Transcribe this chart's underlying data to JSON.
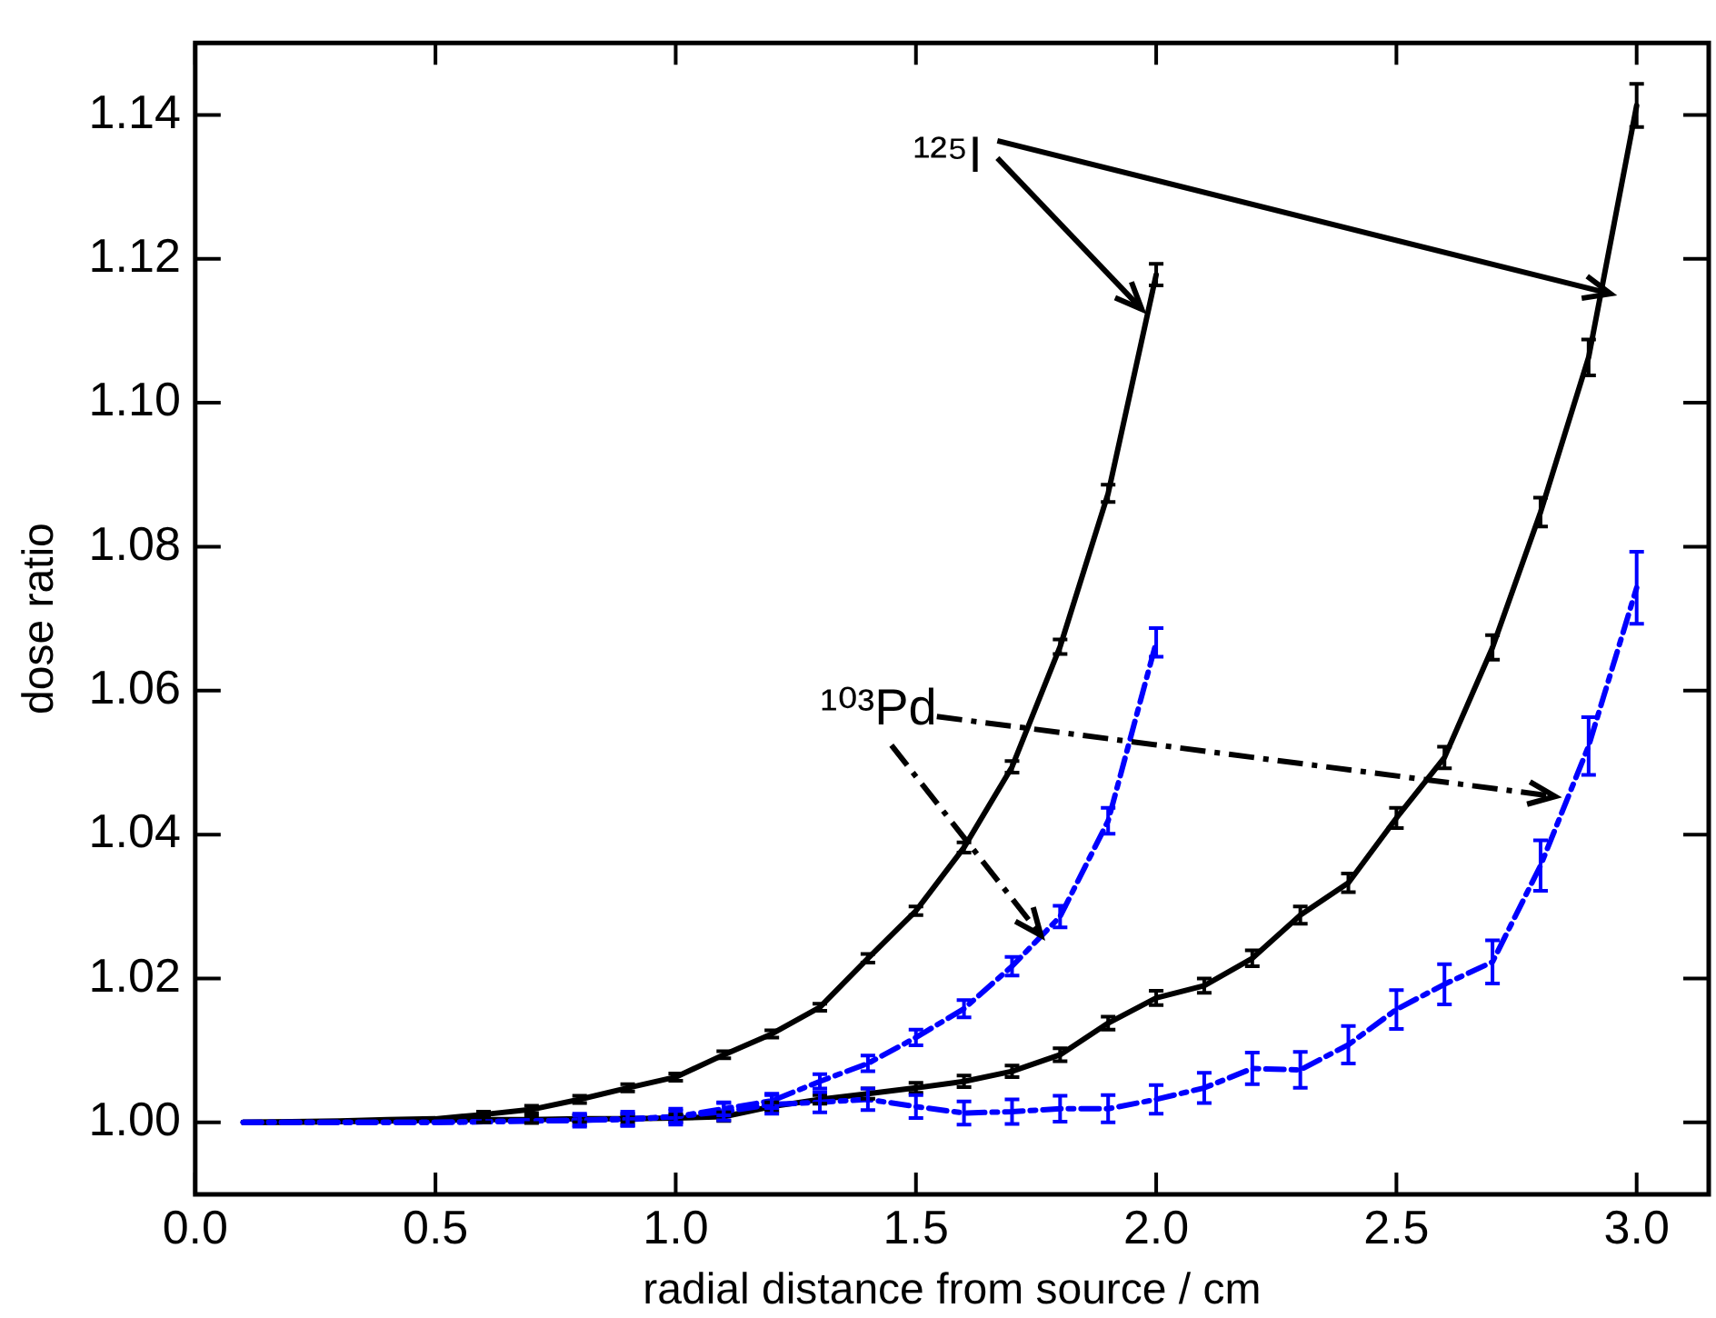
{
  "chart_data": {
    "type": "line",
    "xlabel": "radial distance from source / cm",
    "ylabel": "dose ratio",
    "annotations": [
      {
        "text": "¹²⁵I",
        "x": 1.97,
        "y": 1.113
      },
      {
        "text": "¹⁰³Pd",
        "x": 1.76,
        "y": 1.026
      }
    ],
    "x": [
      0.1,
      0.2,
      0.3,
      0.4,
      0.5,
      0.6,
      0.7,
      0.8,
      0.9,
      1.0,
      1.1,
      1.2,
      1.3,
      1.4,
      1.5,
      1.6,
      1.7,
      1.8,
      1.9,
      2.0,
      2.1,
      2.2,
      2.3,
      2.4,
      2.5,
      2.6,
      2.7,
      2.8,
      2.9,
      3.0
    ],
    "series": [
      {
        "color": "#000000",
        "line_style": "solid",
        "x": [
          0.1,
          0.2,
          0.3,
          0.4,
          0.5,
          0.6,
          0.7,
          0.8,
          0.9,
          1.0,
          1.1,
          1.2,
          1.3,
          1.4,
          1.5,
          1.6,
          1.7,
          1.8,
          1.9,
          2.0
        ],
        "values": [
          1.0,
          1.0001,
          1.0002,
          1.0004,
          1.0005,
          1.0011,
          1.0018,
          1.0032,
          1.0048,
          1.0063,
          1.0094,
          1.0123,
          1.016,
          1.0228,
          1.0294,
          1.0382,
          1.0494,
          1.0661,
          1.0874,
          1.1178
        ],
        "errors": [
          null,
          null,
          null,
          null,
          null,
          0.0004,
          0.0005,
          0.0005,
          0.0005,
          0.0005,
          0.0005,
          0.0005,
          0.0005,
          0.0006,
          0.0006,
          0.0007,
          0.0008,
          0.001,
          0.0012,
          0.0015
        ]
      },
      {
        "color": "#000000",
        "line_style": "solid",
        "values": [
          1.0,
          1.0,
          1.0001,
          1.0002,
          1.0003,
          1.0004,
          1.0004,
          1.0005,
          1.0005,
          1.0006,
          1.0008,
          1.0022,
          1.0032,
          1.004,
          1.0048,
          1.0057,
          1.0071,
          1.0094,
          1.0138,
          1.0173,
          1.019,
          1.0228,
          1.0288,
          1.0333,
          1.0423,
          1.0507,
          1.066,
          1.0848,
          1.1063,
          1.1413
        ],
        "errors": [
          null,
          null,
          null,
          null,
          null,
          0.0004,
          0.0005,
          0.0005,
          0.0005,
          0.0005,
          0.0006,
          0.0006,
          0.0006,
          0.0007,
          0.0007,
          0.0008,
          0.0008,
          0.0009,
          0.0009,
          0.001,
          0.001,
          0.0011,
          0.0012,
          0.0013,
          0.0014,
          0.0015,
          0.0017,
          0.002,
          0.0025,
          0.003
        ]
      },
      {
        "color": "#0000ff",
        "line_style": "dashed",
        "x": [
          0.1,
          0.2,
          0.3,
          0.4,
          0.5,
          0.6,
          0.7,
          0.8,
          0.9,
          1.0,
          1.1,
          1.2,
          1.3,
          1.4,
          1.5,
          1.6,
          1.7,
          1.8,
          1.9,
          2.0
        ],
        "values": [
          1.0,
          1.0,
          1.0,
          1.0,
          1.0,
          1.0001,
          1.0002,
          1.0003,
          1.0004,
          1.0008,
          1.0019,
          1.003,
          1.0057,
          1.0082,
          1.0118,
          1.0158,
          1.0217,
          1.0286,
          1.0419,
          1.0667
        ],
        "errors": [
          null,
          null,
          null,
          null,
          null,
          null,
          null,
          0.0007,
          0.0008,
          0.0008,
          0.0009,
          0.001,
          0.001,
          0.0011,
          0.0011,
          0.0012,
          0.0013,
          0.0015,
          0.0018,
          0.002
        ]
      },
      {
        "color": "#0000ff",
        "line_style": "dashed",
        "values": [
          1.0,
          1.0,
          1.0,
          1.0,
          1.0,
          1.0001,
          1.0002,
          1.0003,
          1.0005,
          1.0008,
          1.0015,
          1.0025,
          1.0028,
          1.0032,
          1.0022,
          1.0013,
          1.0015,
          1.0019,
          1.0019,
          1.0032,
          1.0048,
          1.0075,
          1.0073,
          1.0108,
          1.0157,
          1.0192,
          1.0223,
          1.0357,
          1.0523,
          1.0743
        ],
        "errors": [
          null,
          null,
          null,
          null,
          null,
          null,
          null,
          0.0009,
          0.001,
          0.0011,
          0.0012,
          0.0013,
          0.0014,
          0.0015,
          0.0016,
          0.0016,
          0.0017,
          0.0018,
          0.0019,
          0.002,
          0.0021,
          0.0022,
          0.0025,
          0.0026,
          0.0027,
          0.0028,
          0.003,
          0.0035,
          0.004,
          0.005
        ]
      }
    ],
    "xlim": [
      0,
      3.15
    ],
    "xticks": [
      {
        "value": 0,
        "label": "0.0"
      },
      0.5,
      {
        "value": 1,
        "label": "1.0"
      },
      1.5,
      {
        "value": 2,
        "label": "2.0"
      },
      2.5,
      {
        "value": 3,
        "label": "3.0"
      }
    ],
    "ylim": [
      0.99,
      1.15
    ],
    "yticks": [
      {
        "value": 1,
        "label": "1.00"
      },
      1.02,
      1.04,
      1.06,
      1.08,
      {
        "value": 1.1,
        "label": "1.10"
      },
      1.12,
      1.14
    ]
  }
}
